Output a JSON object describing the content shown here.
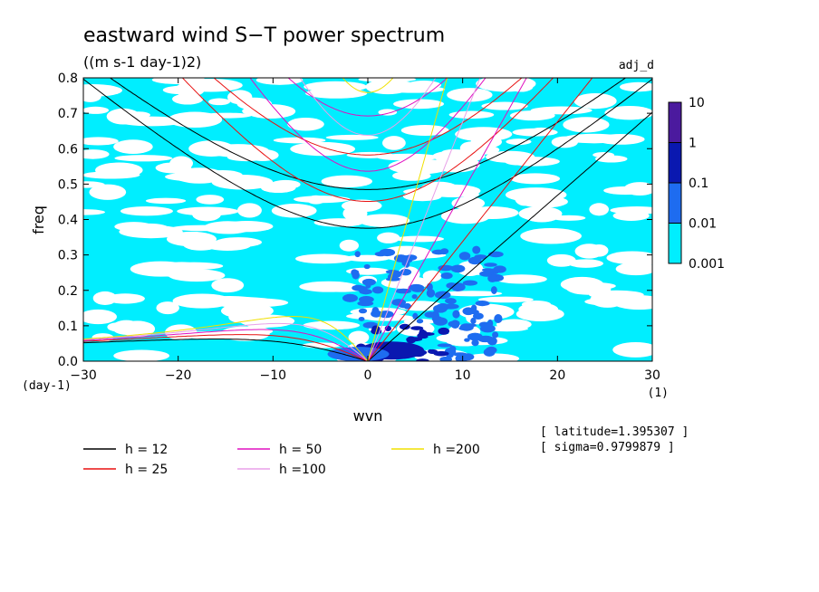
{
  "chart_data": {
    "type": "heatmap",
    "title": "eastward wind S−T power spectrum",
    "subtitle": "((m s-1 day-1)2)",
    "label_right": "adj_d",
    "xlabel": "wvn",
    "ylabel": "freq",
    "x_unit": "(1)",
    "y_unit": "(day-1)",
    "xlim": [
      -30,
      30
    ],
    "ylim": [
      0,
      0.8
    ],
    "x_ticks": [
      -30,
      -20,
      -10,
      0,
      10,
      20,
      30
    ],
    "y_ticks": [
      0.0,
      0.1,
      0.2,
      0.3,
      0.4,
      0.5,
      0.6,
      0.7,
      0.8
    ],
    "x_tick_labels": [
      "−30",
      "−20",
      "−10",
      "0",
      "10",
      "20",
      "30"
    ],
    "y_tick_labels": [
      "0.0",
      "0.1",
      "0.2",
      "0.3",
      "0.4",
      "0.5",
      "0.6",
      "0.7",
      "0.8"
    ],
    "colorbar": {
      "levels": [
        "10",
        "1",
        "0.1",
        "0.01",
        "0.001"
      ],
      "colors": [
        "#4b1a9e",
        "#0a18b0",
        "#1e6cf0",
        "#00eeff"
      ]
    },
    "dispersion_curves": [
      {
        "h": 12,
        "color": "#000000"
      },
      {
        "h": 25,
        "color": "#e81010"
      },
      {
        "h": 50,
        "color": "#e010c0"
      },
      {
        "h": 100,
        "color": "#e8a0e8"
      },
      {
        "h": 200,
        "color": "#f0e000"
      }
    ],
    "legend": [
      {
        "label": "h = 12",
        "color": "#000000"
      },
      {
        "label": "h = 25",
        "color": "#e81010"
      },
      {
        "label": "h = 50",
        "color": "#e010c0"
      },
      {
        "label": "h =100",
        "color": "#e8a0e8"
      },
      {
        "label": "h =200",
        "color": "#f0e000"
      }
    ],
    "info": [
      "[ latitude=1.395307 ]",
      "[ sigma=0.9799879 ]"
    ]
  }
}
